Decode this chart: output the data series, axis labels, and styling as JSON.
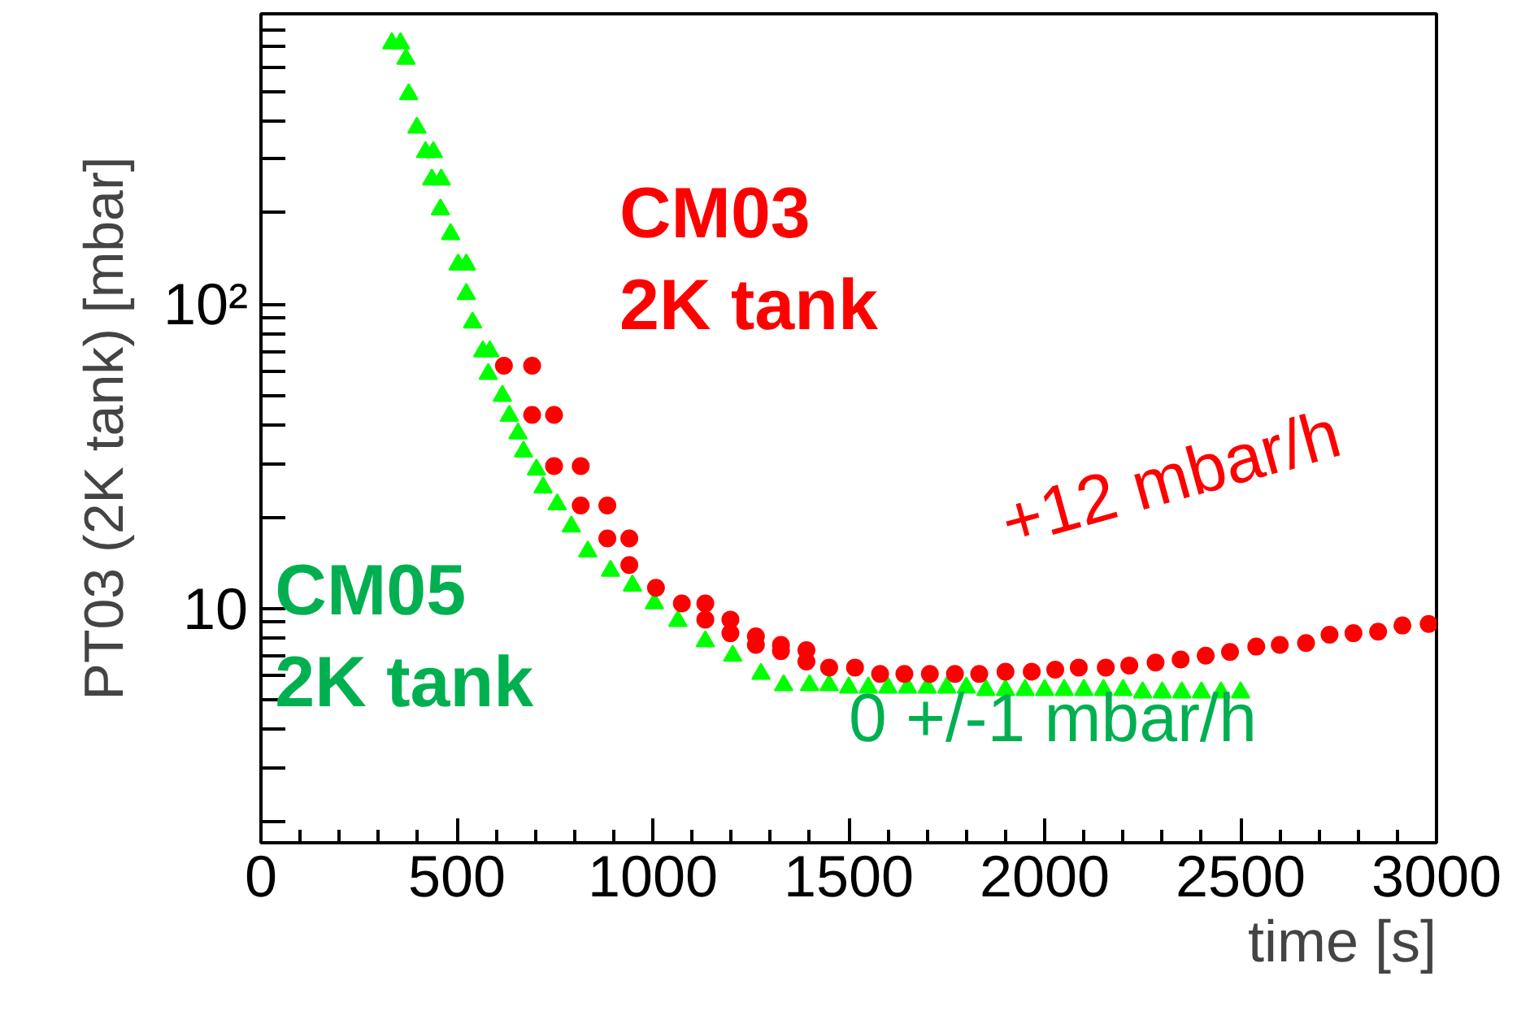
{
  "chart_data": {
    "type": "scatter",
    "xlabel": "time [s]",
    "ylabel": "PT03 (2K tank) [mbar]",
    "log": "y",
    "grid": false,
    "xlim": [
      0,
      3000
    ],
    "ylim": [
      1.7,
      900
    ],
    "xticks": [
      0,
      500,
      1000,
      1500,
      2000,
      2500,
      3000,
      {
        "value": 100,
        "label": null
      },
      {
        "value": 200,
        "label": null
      },
      {
        "value": 300,
        "label": null
      },
      {
        "value": 400,
        "label": null
      },
      {
        "value": 600,
        "label": null
      },
      {
        "value": 700,
        "label": null
      },
      {
        "value": 800,
        "label": null
      },
      {
        "value": 900,
        "label": null
      },
      {
        "value": 1100,
        "label": null
      },
      {
        "value": 1200,
        "label": null
      },
      {
        "value": 1300,
        "label": null
      },
      {
        "value": 1400,
        "label": null
      },
      {
        "value": 1600,
        "label": null
      },
      {
        "value": 1700,
        "label": null
      },
      {
        "value": 1800,
        "label": null
      },
      {
        "value": 1900,
        "label": null
      },
      {
        "value": 2100,
        "label": null
      },
      {
        "value": 2200,
        "label": null
      },
      {
        "value": 2300,
        "label": null
      },
      {
        "value": 2400,
        "label": null
      },
      {
        "value": 2600,
        "label": null
      },
      {
        "value": 2700,
        "label": null
      },
      {
        "value": 2800,
        "label": null
      },
      {
        "value": 2900,
        "label": null
      }
    ],
    "yticks": [
      10,
      {
        "value": 100,
        "label": "10²"
      },
      {
        "value": 2,
        "label": null
      },
      {
        "value": 3,
        "label": null
      },
      {
        "value": 4,
        "label": null
      },
      {
        "value": 5,
        "label": null
      },
      {
        "value": 6,
        "label": null
      },
      {
        "value": 7,
        "label": null
      },
      {
        "value": 8,
        "label": null
      },
      {
        "value": 9,
        "label": null
      },
      {
        "value": 20,
        "label": null
      },
      {
        "value": 30,
        "label": null
      },
      {
        "value": 40,
        "label": null
      },
      {
        "value": 50,
        "label": null
      },
      {
        "value": 60,
        "label": null
      },
      {
        "value": 70,
        "label": null
      },
      {
        "value": 80,
        "label": null
      },
      {
        "value": 90,
        "label": null
      },
      {
        "value": 200,
        "label": null
      },
      {
        "value": 300,
        "label": null
      },
      {
        "value": 400,
        "label": null
      },
      {
        "value": 500,
        "label": null
      },
      {
        "value": 600,
        "label": null
      },
      {
        "value": 700,
        "label": null
      },
      {
        "value": 800,
        "label": null
      }
    ],
    "annotations": [
      "CM03\n2K tank",
      "CM05\n2K tank",
      "+12 mbar/h",
      "0 +/-1 mbar/h"
    ],
    "series": [
      {
        "color": "#00ff00",
        "marker": "triangle",
        "x": [
          334,
          356,
          370,
          377,
          398,
          420,
          436,
          440,
          458,
          460,
          484,
          503,
          524,
          524,
          540,
          566,
          580,
          584,
          616,
          634,
          656,
          670,
          703,
          720,
          756,
          792,
          834,
          892,
          948,
          1004,
          1064,
          1134,
          1204,
          1276,
          1334,
          1400,
          1450,
          1500,
          1550,
          1600,
          1650,
          1700,
          1750,
          1800,
          1850,
          1900,
          1950,
          2000,
          2050,
          2100,
          2150,
          2200,
          2250,
          2300,
          2350,
          2400,
          2450,
          2500
        ],
        "values": [
          720,
          720,
          640,
          490,
          380,
          316,
          257,
          316,
          205,
          257,
          170,
          135,
          135,
          108,
          87,
          70,
          59,
          70,
          50,
          43,
          37.6,
          32.8,
          28.6,
          25,
          22,
          18.6,
          15.4,
          13.3,
          11.9,
          10.4,
          9.1,
          7.8,
          7.0,
          6.1,
          5.6,
          5.6,
          5.6,
          5.5,
          5.5,
          5.5,
          5.5,
          5.5,
          5.5,
          5.5,
          5.4,
          5.4,
          5.4,
          5.4,
          5.4,
          5.4,
          5.4,
          5.4,
          5.3,
          5.3,
          5.3,
          5.3,
          5.3,
          5.3
        ]
      },
      {
        "color": "#ff0000",
        "marker": "circle",
        "x": [
          620,
          692,
          692,
          748,
          748,
          816,
          816,
          884,
          884,
          940,
          940,
          1008,
          1074,
          1134,
          1134,
          1198,
          1198,
          1263,
          1263,
          1327,
          1327,
          1392,
          1392,
          1450,
          1516,
          1580,
          1642,
          1707,
          1771,
          1833,
          1900,
          1967,
          2027,
          2087,
          2156,
          2216,
          2283,
          2347,
          2411,
          2473,
          2540,
          2600,
          2667,
          2727,
          2788,
          2851,
          2913,
          2980
        ],
        "values": [
          62.8,
          62.8,
          43.3,
          43.3,
          29.4,
          29.4,
          21.8,
          21.8,
          17,
          17,
          13.9,
          11.7,
          10.4,
          10.4,
          9.2,
          9.2,
          8.3,
          8.1,
          7.6,
          7.6,
          7.25,
          7.3,
          6.7,
          6.4,
          6.4,
          6.1,
          6.1,
          6.1,
          6.1,
          6.1,
          6.2,
          6.2,
          6.3,
          6.4,
          6.4,
          6.5,
          6.65,
          6.8,
          7.0,
          7.2,
          7.5,
          7.6,
          7.7,
          8.2,
          8.3,
          8.4,
          8.8,
          8.9
        ]
      }
    ]
  }
}
